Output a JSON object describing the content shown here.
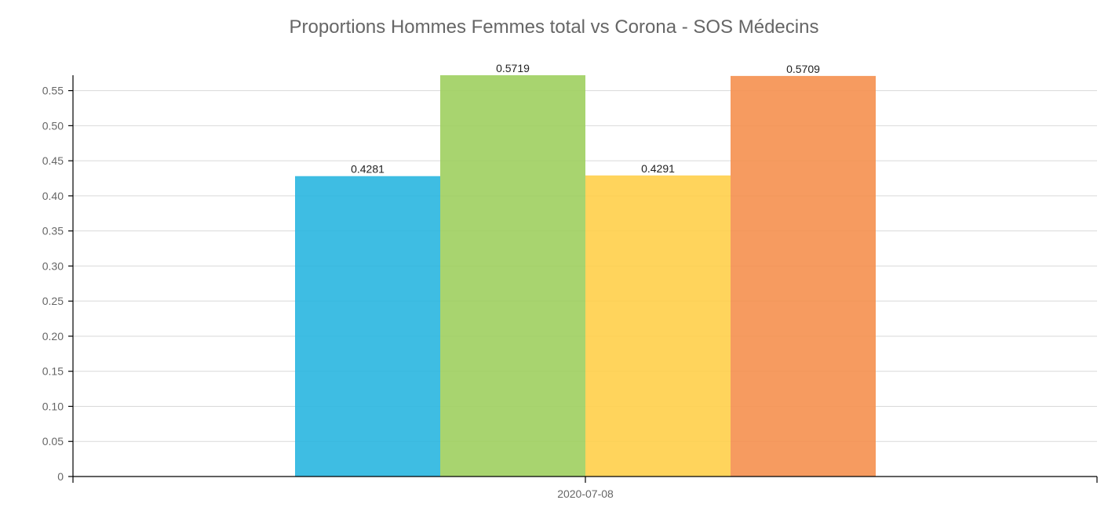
{
  "chart_data": {
    "type": "bar",
    "title": "Proportions Hommes Femmes total vs Corona - SOS Médecins",
    "categories": [
      "2020-07-08"
    ],
    "series": [
      {
        "values": [
          0.4281
        ],
        "color": "#29b6e0"
      },
      {
        "values": [
          0.5719
        ],
        "color": "#9fcf5f"
      },
      {
        "values": [
          0.4291
        ],
        "color": "#ffcf4a"
      },
      {
        "values": [
          0.5709
        ],
        "color": "#f5904f"
      }
    ],
    "data_labels": [
      "0.4281",
      "0.5719",
      "0.4291",
      "0.5709"
    ],
    "xlabel": "",
    "ylabel": "",
    "ylim": [
      0,
      0.5719
    ],
    "y_ticks": [
      "0",
      "0.05",
      "0.10",
      "0.15",
      "0.20",
      "0.25",
      "0.30",
      "0.35",
      "0.40",
      "0.45",
      "0.50",
      "0.55"
    ],
    "grid": true,
    "legend": "none"
  }
}
